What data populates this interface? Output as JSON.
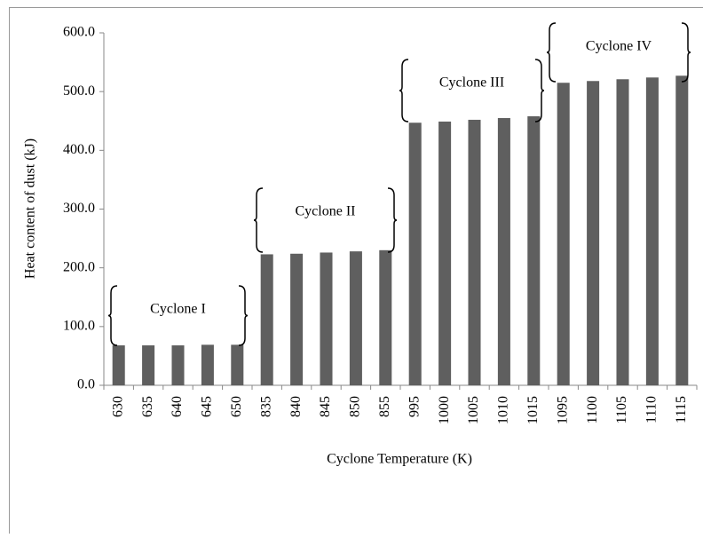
{
  "chart_data": {
    "type": "bar",
    "categories": [
      "630",
      "635",
      "640",
      "645",
      "650",
      "835",
      "840",
      "845",
      "850",
      "855",
      "995",
      "1000",
      "1005",
      "1010",
      "1015",
      "1095",
      "1100",
      "1105",
      "1110",
      "1115"
    ],
    "values": [
      68,
      68,
      68,
      69,
      69,
      223,
      224,
      226,
      228,
      230,
      447,
      449,
      452,
      455,
      458,
      515,
      518,
      521,
      524,
      527
    ],
    "color": "#5f5f5f",
    "xlabel": "Cyclone Temperature (K)",
    "ylabel": "Heat content of dust (kJ)",
    "ylim": [
      0,
      600
    ],
    "yticks": [
      {
        "value": 0,
        "label": "0.0"
      },
      {
        "value": 100,
        "label": "100.0"
      },
      {
        "value": 200,
        "label": "200.0"
      },
      {
        "value": 300,
        "label": "300.0"
      },
      {
        "value": 400,
        "label": "400.0"
      },
      {
        "value": 500,
        "label": "500.0"
      },
      {
        "value": 600,
        "label": "600.0"
      }
    ],
    "annotations": [
      "Cyclone I",
      "Cyclone II",
      "Cyclone III",
      "Cyclone IV"
    ]
  }
}
